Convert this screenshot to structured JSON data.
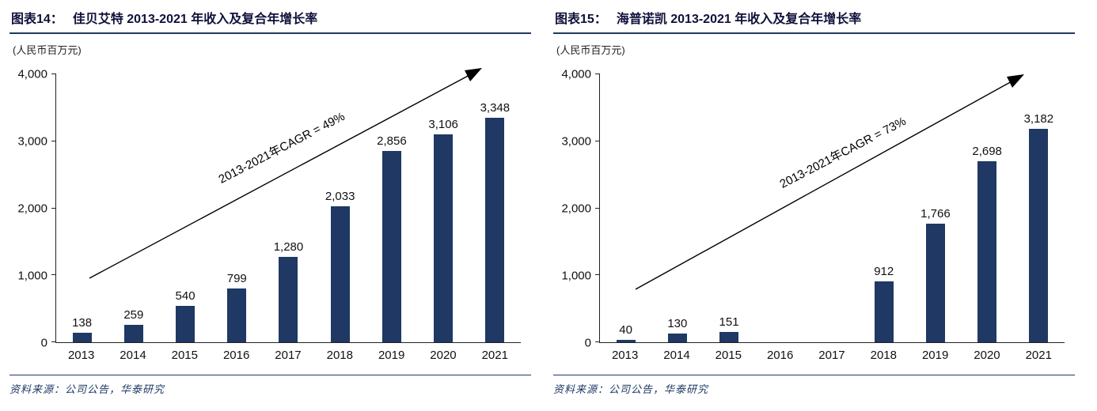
{
  "accent_color": "#1f3864",
  "chart_data": [
    {
      "type": "bar",
      "figure_label": "图表14：",
      "title": "佳贝艾特 2013-2021 年收入及复合年增长率",
      "unit_label": "(人民币百万元)",
      "categories": [
        "2013",
        "2014",
        "2015",
        "2016",
        "2017",
        "2018",
        "2019",
        "2020",
        "2021"
      ],
      "values": [
        138,
        259,
        540,
        799,
        1280,
        2033,
        2856,
        3106,
        3348
      ],
      "value_labels": [
        "138",
        "259",
        "540",
        "799",
        "1,280",
        "2,033",
        "2,856",
        "3,106",
        "3,348"
      ],
      "annotation": "2013-2021年CAGR = 49%",
      "xlabel": "",
      "ylabel": "",
      "ylim": [
        0,
        4000
      ],
      "yticks": [
        0,
        1000,
        2000,
        3000,
        4000
      ],
      "ytick_labels": [
        "0",
        "1,000",
        "2,000",
        "3,000",
        "4,000"
      ],
      "grid": false,
      "legend": "none",
      "bar_color": "#1f3864",
      "source": "资料来源：公司公告，华泰研究"
    },
    {
      "type": "bar",
      "figure_label": "图表15：",
      "title": "海普诺凯 2013-2021 年收入及复合年增长率",
      "unit_label": "(人民币百万元)",
      "categories": [
        "2013",
        "2014",
        "2015",
        "2016",
        "2017",
        "2018",
        "2019",
        "2020",
        "2021"
      ],
      "values": [
        40,
        130,
        151,
        null,
        null,
        912,
        1766,
        2698,
        3182
      ],
      "value_labels": [
        "40",
        "130",
        "151",
        null,
        null,
        "912",
        "1,766",
        "2,698",
        "3,182"
      ],
      "annotation": "2013-2021年CAGR = 73%",
      "xlabel": "",
      "ylabel": "",
      "ylim": [
        0,
        4000
      ],
      "yticks": [
        0,
        1000,
        2000,
        3000,
        4000
      ],
      "ytick_labels": [
        "0",
        "1,000",
        "2,000",
        "3,000",
        "4,000"
      ],
      "grid": false,
      "legend": "none",
      "bar_color": "#1f3864",
      "source": "资料来源：公司公告，华泰研究"
    }
  ]
}
